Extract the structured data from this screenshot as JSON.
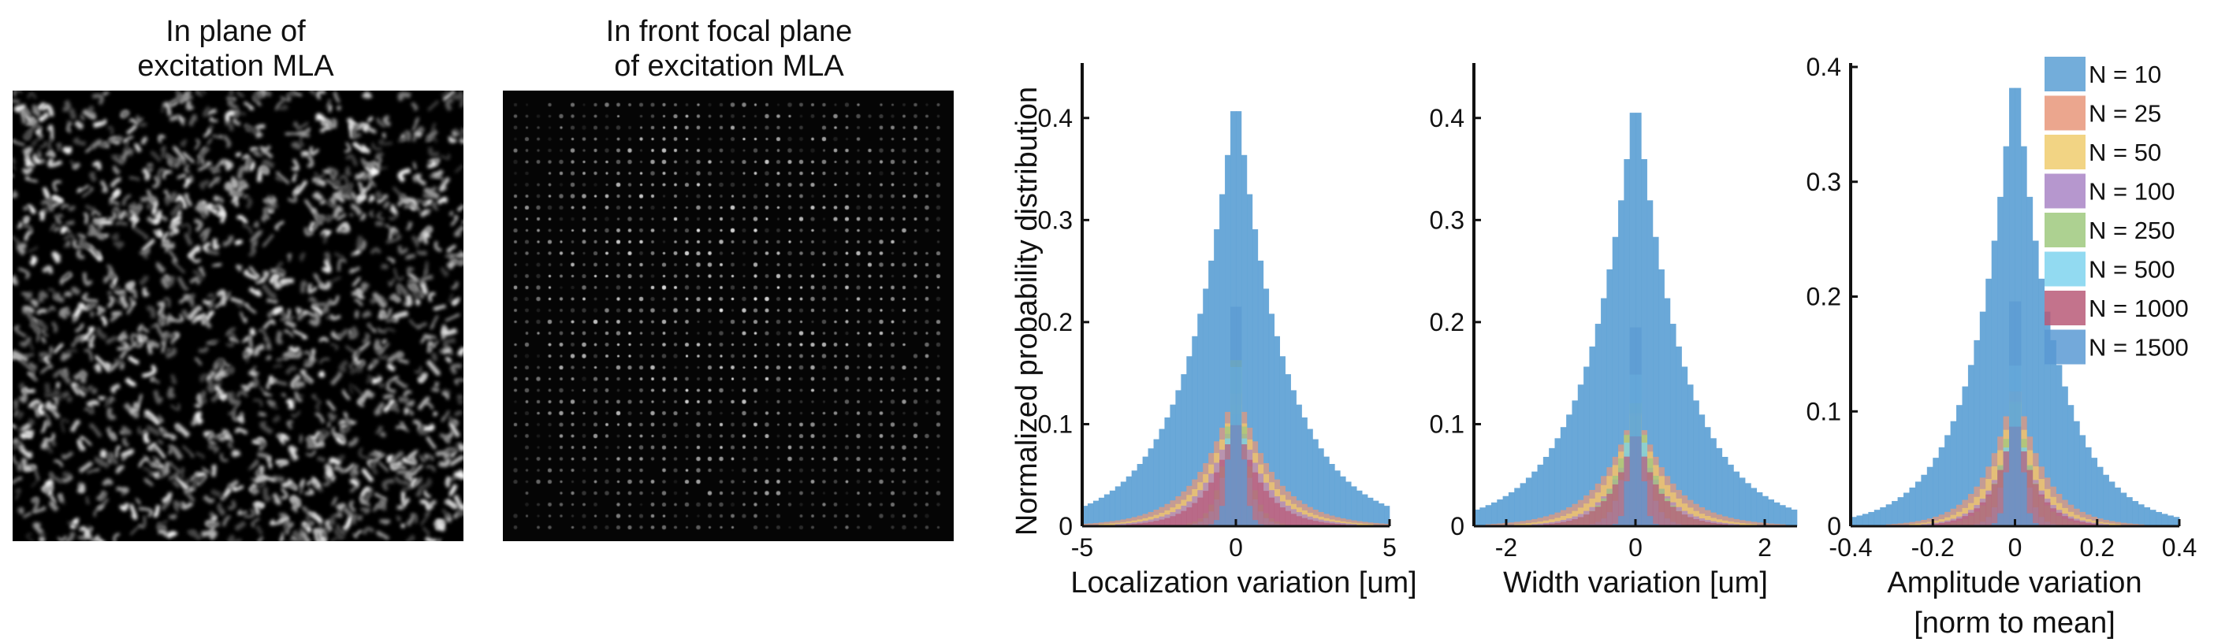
{
  "images": [
    {
      "title_line1": "In plane of",
      "title_line2": "excitation MLA"
    },
    {
      "title_line1": "In front focal plane",
      "title_line2": "of excitation MLA"
    }
  ],
  "legend": {
    "entries": [
      {
        "label": "N = 10",
        "color": "#5a9fd4"
      },
      {
        "label": "N = 25",
        "color": "#e8977a"
      },
      {
        "label": "N = 50",
        "color": "#f0cc6e"
      },
      {
        "label": "N = 100",
        "color": "#a985c5"
      },
      {
        "label": "N = 250",
        "color": "#9fc97e"
      },
      {
        "label": "N = 500",
        "color": "#7fd3ee"
      },
      {
        "label": "N = 1000",
        "color": "#b85a78"
      },
      {
        "label": "N = 1500",
        "color": "#5b9ad3"
      }
    ]
  },
  "ylabel": "Normalized probability distribution",
  "chart_data": [
    {
      "type": "bar",
      "xlabel": "Localization variation [um]",
      "xlim": [
        -5,
        5
      ],
      "ylim": [
        0,
        0.45
      ],
      "xticks": [
        -5,
        0,
        5
      ],
      "yticks": [
        0,
        0.1,
        0.2,
        0.3,
        0.4
      ],
      "series_names": [
        "N = 10",
        "N = 25",
        "N = 50",
        "N = 100",
        "N = 250",
        "N = 500",
        "N = 1000",
        "N = 1500"
      ],
      "series_peaks": [
        0.43,
        0.14,
        0.13,
        0.12,
        0.21,
        0.21,
        0.11,
        0.39
      ],
      "series_widths": [
        1.6,
        1.2,
        1.05,
        0.95,
        0.35,
        0.3,
        0.85,
        0.15
      ]
    },
    {
      "type": "bar",
      "xlabel": "Width variation [um]",
      "xlim": [
        -2.5,
        2.5
      ],
      "ylim": [
        0,
        0.45
      ],
      "xticks": [
        -2,
        0,
        2
      ],
      "yticks": [
        0,
        0.1,
        0.2,
        0.3,
        0.4
      ],
      "series_names": [
        "N = 10",
        "N = 25",
        "N = 50",
        "N = 100",
        "N = 250",
        "N = 500",
        "N = 1000",
        "N = 1500"
      ],
      "series_peaks": [
        0.43,
        0.12,
        0.12,
        0.1,
        0.14,
        0.2,
        0.1,
        0.41
      ],
      "series_widths": [
        0.75,
        0.55,
        0.45,
        0.4,
        0.3,
        0.15,
        0.35,
        0.06
      ]
    },
    {
      "type": "bar",
      "xlabel_line1": "Amplitude variation",
      "xlabel_line2": "[norm to mean]",
      "xlim": [
        -0.4,
        0.4
      ],
      "ylim": [
        0,
        0.4
      ],
      "xticks": [
        -0.4,
        -0.2,
        0,
        0.2,
        0.4
      ],
      "yticks": [
        0,
        0.1,
        0.2,
        0.3,
        0.4
      ],
      "series_names": [
        "N = 10",
        "N = 25",
        "N = 50",
        "N = 100",
        "N = 250",
        "N = 500",
        "N = 1000",
        "N = 1500"
      ],
      "series_peaks": [
        0.41,
        0.13,
        0.12,
        0.1,
        0.13,
        0.2,
        0.1,
        0.4
      ],
      "series_widths": [
        0.1,
        0.07,
        0.06,
        0.055,
        0.04,
        0.02,
        0.05,
        0.01
      ]
    }
  ]
}
